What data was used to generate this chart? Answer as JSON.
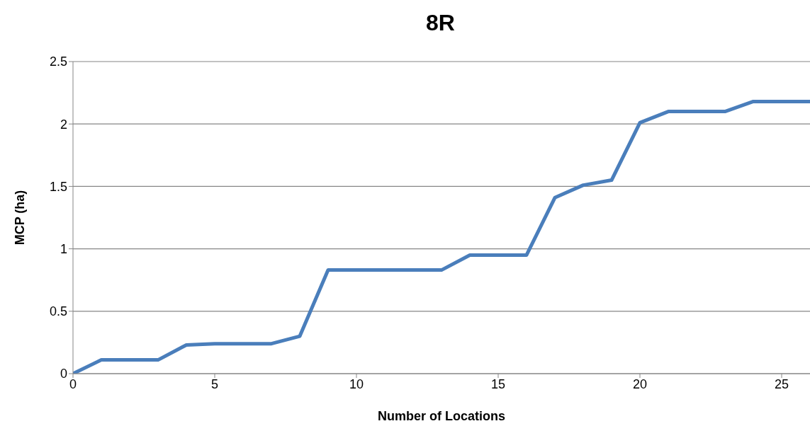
{
  "chart_data": {
    "type": "line",
    "title": "8R",
    "xlabel": "Number of Locations",
    "ylabel": "MCP (ha)",
    "x": [
      0,
      1,
      2,
      3,
      4,
      5,
      6,
      7,
      8,
      9,
      10,
      11,
      12,
      13,
      14,
      15,
      16,
      17,
      18,
      19,
      20,
      21,
      22,
      23,
      24,
      25,
      26
    ],
    "series": [
      {
        "color": "#4a7ebb",
        "values": [
          0,
          0.11,
          0.11,
          0.11,
          0.23,
          0.24,
          0.24,
          0.24,
          0.3,
          0.83,
          0.83,
          0.83,
          0.83,
          0.83,
          0.95,
          0.95,
          0.95,
          1.41,
          1.51,
          1.55,
          2.01,
          2.1,
          2.1,
          2.1,
          2.18,
          2.18,
          2.18
        ]
      }
    ],
    "xlim": [
      0,
      26
    ],
    "xticks": [
      0,
      5,
      10,
      15,
      20,
      25
    ],
    "ylim": [
      0,
      2.5
    ],
    "yticks": [
      0,
      0.5,
      1,
      1.5,
      2,
      2.5
    ],
    "grid": "y",
    "legend": false,
    "marker": "none",
    "line_style": "solid"
  }
}
